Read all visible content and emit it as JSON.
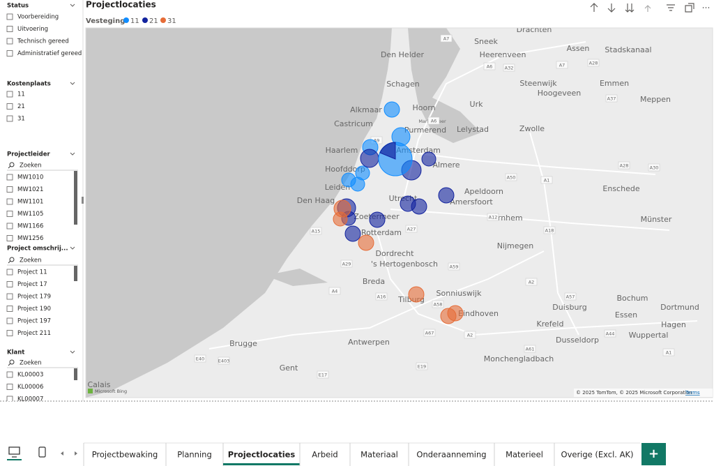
{
  "slicers": [
    {
      "title": "Status",
      "items": [
        "Voorbereiding",
        "Uitvoering",
        "Technisch gereed",
        "Administratief gereed"
      ]
    },
    {
      "title": "Kostenplaats",
      "items": [
        "11",
        "21",
        "31"
      ]
    },
    {
      "title": "Projectleider",
      "search": "Zoeken",
      "items": [
        "MW1010",
        "MW1021",
        "MW1101",
        "MW1105",
        "MW1166",
        "MW1256"
      ]
    },
    {
      "title": "Project omschrij...",
      "search": "Zoeken",
      "items": [
        "Project 11",
        "Project 17",
        "Project 179",
        "Project 190",
        "Project 197",
        "Project 211"
      ]
    },
    {
      "title": "Klant",
      "search": "Zoeken",
      "items": [
        "KL00003",
        "KL00006",
        "KL00007"
      ]
    }
  ],
  "visual": {
    "title": "Projectlocaties",
    "legend": {
      "title": "Vesteging",
      "items": [
        {
          "name": "11",
          "color": "#118dff"
        },
        {
          "name": "21",
          "color": "#12239e"
        },
        {
          "name": "31",
          "color": "#e66c37"
        }
      ]
    },
    "map_labels": [
      "Drachten",
      "Sneek",
      "Assen",
      "Den Helder",
      "Heerenveen",
      "Stadskanaal",
      "Schagen",
      "Steenwijk",
      "Emmen",
      "Hoogeveen",
      "Meppen",
      "Hoorn",
      "Alkmaar",
      "Urk",
      "Castricum",
      "Lelystad",
      "Zwolle",
      "Purmerend",
      "Markermeer",
      "Haarlem",
      "Amsterdam",
      "Almere",
      "Hoofddorp",
      "Leiden",
      "Apeldoorn",
      "Enschede",
      "Utrecht",
      "Amersfoort",
      "Den Haag",
      "Zoetermeer",
      "Arnhem",
      "Münster",
      "Rotterdam",
      "Nijmegen",
      "Dordrecht",
      "'s Hertogenbosch",
      "Breda",
      "Sonniuswijk",
      "Tilburg",
      "Eindhoven",
      "Duisburg",
      "Bochum",
      "Dortmund",
      "Essen",
      "Krefeld",
      "Hagen",
      "Wuppertal",
      "Dusseldorp",
      "Brugge",
      "Antwerpen",
      "Gent",
      "Monchengladbach",
      "Calais"
    ],
    "road_labels": [
      "A7",
      "A6",
      "A32",
      "A28",
      "A7",
      "A9",
      "A6",
      "A37",
      "A1",
      "A30",
      "A28",
      "A50",
      "A12",
      "A18",
      "A27",
      "A15",
      "A29",
      "A4",
      "A16",
      "A59",
      "A2",
      "A58",
      "A67",
      "A2",
      "A61",
      "A57",
      "A44",
      "A1",
      "E40",
      "E403",
      "E17",
      "E19"
    ],
    "brand": "Microsoft Bing",
    "attribution": "© 2025 TomTom, © 2025 Microsoft Corporation",
    "terms": "Terms"
  },
  "tabs": [
    "Projectbewaking",
    "Planning",
    "Projectlocaties",
    "Arbeid",
    "Materiaal",
    "Onderaanneming",
    "Materieel",
    "Overige (Excl. AK)"
  ],
  "active_tab": 2,
  "add_tab": "+"
}
